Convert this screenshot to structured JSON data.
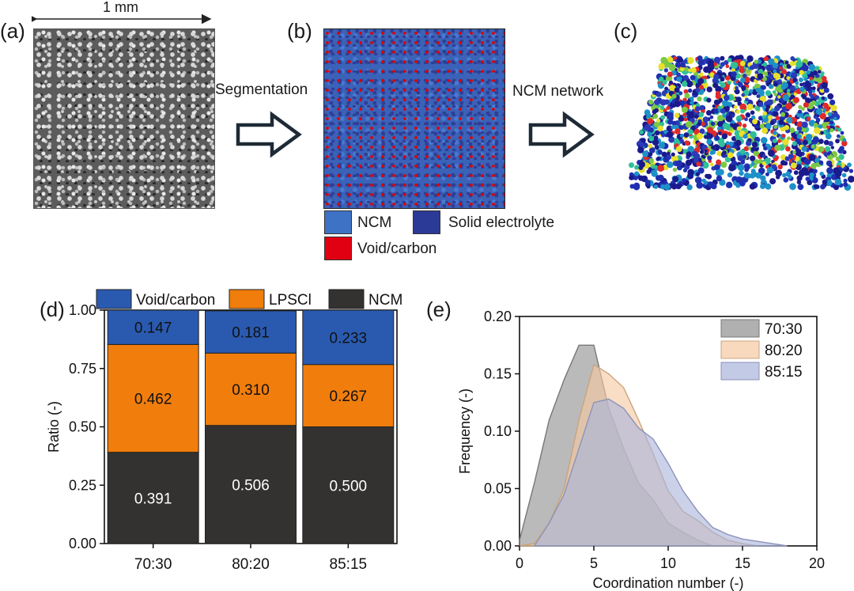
{
  "panels": {
    "a": {
      "label": "(a)",
      "scale_label": "1 mm"
    },
    "b": {
      "label": "(b)",
      "arrow_label": "Segmentation"
    },
    "c": {
      "label": "(c)",
      "arrow_label": "NCM network"
    },
    "d": {
      "label": "(d)"
    },
    "e": {
      "label": "(e)"
    }
  },
  "segmentation_legend": [
    {
      "label": "NCM",
      "color": "#3d72c4"
    },
    {
      "label": "Solid electrolyte",
      "color": "#2b3a96"
    },
    {
      "label": "Void/carbon",
      "color": "#e00012"
    }
  ],
  "colors": {
    "void_carbon": "#2a5ab0",
    "lpscl": "#f07d0c",
    "ncm": "#333230",
    "series_70_30": "#8f8f8f",
    "series_80_20": "#f5c9a2",
    "series_85_15": "#aab4dc"
  },
  "chart_data": [
    {
      "type": "bar",
      "stacked": true,
      "title": "",
      "xlabel": "",
      "ylabel": "Ratio (-)",
      "ylim": [
        0,
        1.0
      ],
      "yticks": [
        "0.00",
        "0.25",
        "0.50",
        "0.75",
        "1.00"
      ],
      "categories": [
        "70:30",
        "80:20",
        "85:15"
      ],
      "legend_position": "top",
      "series": [
        {
          "name": "NCM",
          "values": [
            0.391,
            0.506,
            0.5
          ],
          "labels": [
            "0.391",
            "0.506",
            "0.500"
          ]
        },
        {
          "name": "LPSCl",
          "values": [
            0.462,
            0.31,
            0.267
          ],
          "labels": [
            "0.462",
            "0.310",
            "0.267"
          ]
        },
        {
          "name": "Void/carbon",
          "values": [
            0.147,
            0.181,
            0.233
          ],
          "labels": [
            "0.147",
            "0.181",
            "0.233"
          ]
        }
      ],
      "legend_order": [
        "Void/carbon",
        "LPSCl",
        "NCM"
      ]
    },
    {
      "type": "area",
      "title": "",
      "xlabel": "Coordination number (-)",
      "ylabel": "Frequency (-)",
      "xlim": [
        0,
        20
      ],
      "ylim": [
        0,
        0.2
      ],
      "xticks": [
        "0",
        "5",
        "10",
        "15",
        "20"
      ],
      "yticks": [
        "0.00",
        "0.05",
        "0.10",
        "0.15",
        "0.20"
      ],
      "legend_position": "top-right",
      "series": [
        {
          "name": "70:30",
          "x": [
            0,
            1,
            2,
            3,
            4,
            5,
            6,
            7,
            8,
            9,
            10,
            11,
            12,
            13
          ],
          "y": [
            0.005,
            0.055,
            0.11,
            0.145,
            0.175,
            0.175,
            0.12,
            0.085,
            0.055,
            0.04,
            0.02,
            0.012,
            0.005,
            0.0
          ]
        },
        {
          "name": "80:20",
          "x": [
            0,
            1,
            2,
            3,
            4,
            5,
            6,
            7,
            8,
            9,
            10,
            11,
            12,
            13,
            14,
            15,
            16
          ],
          "y": [
            0.0,
            0.002,
            0.02,
            0.05,
            0.11,
            0.158,
            0.15,
            0.138,
            0.11,
            0.08,
            0.048,
            0.03,
            0.022,
            0.012,
            0.005,
            0.002,
            0.0
          ]
        },
        {
          "name": "85:15",
          "x": [
            1,
            2,
            3,
            4,
            5,
            6,
            7,
            8,
            9,
            10,
            11,
            12,
            13,
            14,
            15,
            16,
            17,
            18
          ],
          "y": [
            0.0,
            0.02,
            0.045,
            0.085,
            0.125,
            0.128,
            0.12,
            0.103,
            0.093,
            0.072,
            0.048,
            0.03,
            0.016,
            0.01,
            0.006,
            0.004,
            0.002,
            0.0
          ]
        }
      ]
    }
  ]
}
